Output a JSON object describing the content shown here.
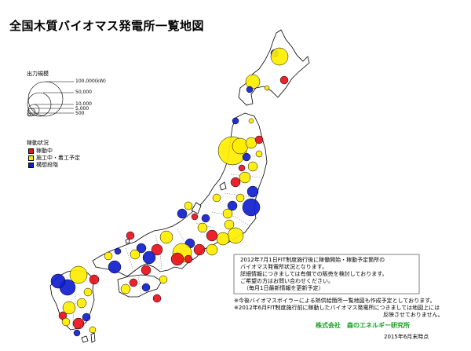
{
  "title": "全国木質バイオマス発電所一覧地図",
  "legend_size": {
    "title": "出力規模",
    "labels": [
      "100,000(kW)",
      "50,000",
      "10,000",
      "5,000",
      "500"
    ]
  },
  "legend_status": {
    "title": "稼動状況",
    "items": [
      {
        "label": "稼動中",
        "color": "#e8101a"
      },
      {
        "label": "施工中・着工予定",
        "color": "#ffee00"
      },
      {
        "label": "構想段階",
        "color": "#1020d0"
      }
    ]
  },
  "notes": [
    "2012年7月1日FIT制度施行後に稼働開始・稼動予定箇所の",
    "バイオマス発電所状況となります。",
    "詳細情報につきましては有償での販売を検討しております。",
    "ご希望の方はお問い合わせください。",
    "（毎月1日最新情報を更新予定）"
  ],
  "notes2": [
    "※今後バイオマスボイラーによる熱供給箇所一覧地図も作成予定としております。",
    "※2012年6月FIT制度施行前に稼動したバイオマス発電所につきましては地図上には",
    "反映させておりません。"
  ],
  "company": "株式会社　森のエネルギー研究所",
  "date": "2015年6月末時点",
  "colors": {
    "operating": "#e8101a",
    "construction": "#ffee00",
    "planned": "#1020d0",
    "land": "#ffffff"
  }
}
